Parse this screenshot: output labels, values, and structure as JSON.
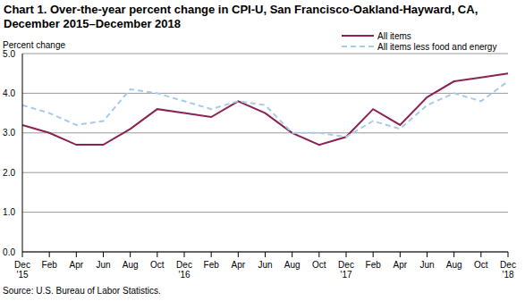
{
  "chart_data": {
    "type": "line",
    "title": "Chart 1. Over-the-year percent change in CPI-U, San Francisco-Oakland-Hayward,  CA,",
    "subtitle": "December 2015–December 2018",
    "y_label": "Percent change",
    "annotation": "Source: U.S. Bureau of Labor Statistics.",
    "categories": [
      "Dec '15",
      "Feb",
      "Apr",
      "Jun",
      "Aug",
      "Oct",
      "Dec '16",
      "Feb",
      "Apr",
      "Jun",
      "Aug",
      "Oct",
      "Dec '17",
      "Feb",
      "Apr",
      "Jun",
      "Aug",
      "Oct",
      "Dec '18"
    ],
    "series": [
      {
        "name": "All items",
        "color": "#8b2252",
        "line_style": "solid",
        "values": [
          3.2,
          3.0,
          2.7,
          2.7,
          3.1,
          3.6,
          3.5,
          3.4,
          3.8,
          3.5,
          3.0,
          2.7,
          2.9,
          3.6,
          3.2,
          3.9,
          4.3,
          4.4,
          4.5
        ]
      },
      {
        "name": "All items less food and energy",
        "color": "#a8cbe9",
        "line_style": "dashed",
        "values": [
          3.7,
          3.5,
          3.2,
          3.3,
          4.1,
          4.0,
          3.8,
          3.6,
          3.8,
          3.7,
          3.0,
          3.0,
          2.9,
          3.3,
          3.1,
          3.7,
          4.0,
          3.8,
          4.3
        ]
      }
    ],
    "ylim": [
      0,
      5
    ],
    "yticks": [
      {
        "value": 0,
        "label": "0.0"
      },
      {
        "value": 1,
        "label": "1.0"
      },
      {
        "value": 2,
        "label": "2.0"
      },
      {
        "value": 3,
        "label": "3.0"
      },
      {
        "value": 4,
        "label": "4.0"
      },
      {
        "value": 5,
        "label": "5.0"
      }
    ],
    "grid": true,
    "legend": "upper right"
  }
}
